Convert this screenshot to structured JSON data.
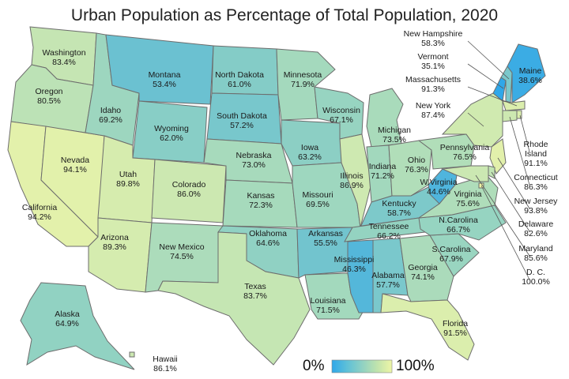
{
  "title": "Urban Population as Percentage of Total Population, 2020",
  "legend": {
    "min_label": "0%",
    "max_label": "100%",
    "colors": [
      "#2fa7e9",
      "#5ec0d8",
      "#8fd1c3",
      "#bfe3ad",
      "#eef5a6"
    ]
  },
  "color_scale": {
    "low": "#2fa7e9",
    "high": "#f3f7a6"
  },
  "states": [
    {
      "name": "Washington",
      "value": 83.4,
      "label": "83.4%"
    },
    {
      "name": "Oregon",
      "value": 80.5,
      "label": "80.5%"
    },
    {
      "name": "California",
      "value": 94.2,
      "label": "94.2%"
    },
    {
      "name": "Nevada",
      "value": 94.1,
      "label": "94.1%"
    },
    {
      "name": "Idaho",
      "value": 69.2,
      "label": "69.2%"
    },
    {
      "name": "Montana",
      "value": 53.4,
      "label": "53.4%"
    },
    {
      "name": "Wyoming",
      "value": 62.0,
      "label": "62.0%"
    },
    {
      "name": "Utah",
      "value": 89.8,
      "label": "89.8%"
    },
    {
      "name": "Colorado",
      "value": 86.0,
      "label": "86.0%"
    },
    {
      "name": "Arizona",
      "value": 89.3,
      "label": "89.3%"
    },
    {
      "name": "New Mexico",
      "value": 74.5,
      "label": "74.5%"
    },
    {
      "name": "North Dakota",
      "value": 61.0,
      "label": "61.0%"
    },
    {
      "name": "South Dakota",
      "value": 57.2,
      "label": "57.2%"
    },
    {
      "name": "Nebraska",
      "value": 73.0,
      "label": "73.0%"
    },
    {
      "name": "Kansas",
      "value": 72.3,
      "label": "72.3%"
    },
    {
      "name": "Oklahoma",
      "value": 64.6,
      "label": "64.6%"
    },
    {
      "name": "Texas",
      "value": 83.7,
      "label": "83.7%"
    },
    {
      "name": "Minnesota",
      "value": 71.9,
      "label": "71.9%"
    },
    {
      "name": "Iowa",
      "value": 63.2,
      "label": "63.2%"
    },
    {
      "name": "Missouri",
      "value": 69.5,
      "label": "69.5%"
    },
    {
      "name": "Arkansas",
      "value": 55.5,
      "label": "55.5%"
    },
    {
      "name": "Louisiana",
      "value": 71.5,
      "label": "71.5%"
    },
    {
      "name": "Wisconsin",
      "value": 67.1,
      "label": "67.1%"
    },
    {
      "name": "Illinois",
      "value": 86.9,
      "label": "86.9%"
    },
    {
      "name": "Michigan",
      "value": 73.5,
      "label": "73.5%"
    },
    {
      "name": "Indiana",
      "value": 71.2,
      "label": "71.2%"
    },
    {
      "name": "Ohio",
      "value": 76.3,
      "label": "76.3%"
    },
    {
      "name": "Kentucky",
      "value": 58.7,
      "label": "58.7%"
    },
    {
      "name": "Tennessee",
      "value": 66.2,
      "label": "66.2%"
    },
    {
      "name": "Mississippi",
      "value": 46.3,
      "label": "46.3%"
    },
    {
      "name": "Alabama",
      "value": 57.7,
      "label": "57.7%"
    },
    {
      "name": "Georgia",
      "value": 74.1,
      "label": "74.1%"
    },
    {
      "name": "Florida",
      "value": 91.5,
      "label": "91.5%"
    },
    {
      "name": "S.Carolina",
      "value": 67.9,
      "label": "67.9%"
    },
    {
      "name": "N.Carolina",
      "value": 66.7,
      "label": "66.7%"
    },
    {
      "name": "Virginia",
      "value": 75.6,
      "label": "75.6%"
    },
    {
      "name": "W.Virginia",
      "value": 44.6,
      "label": "44.6%"
    },
    {
      "name": "Pennsylvania",
      "value": 76.5,
      "label": "76.5%"
    },
    {
      "name": "New York",
      "value": 87.4,
      "label": "87.4%"
    },
    {
      "name": "Vermont",
      "value": 35.1,
      "label": "35.1%"
    },
    {
      "name": "New Hampshire",
      "value": 58.3,
      "label": "58.3%"
    },
    {
      "name": "Maine",
      "value": 38.6,
      "label": "38.6%"
    },
    {
      "name": "Massachusetts",
      "value": 91.3,
      "label": "91.3%"
    },
    {
      "name": "Rhode Island",
      "value": 91.1,
      "label": "91.1%"
    },
    {
      "name": "Connecticut",
      "value": 86.3,
      "label": "86.3%"
    },
    {
      "name": "New Jersey",
      "value": 93.8,
      "label": "93.8%"
    },
    {
      "name": "Delaware",
      "value": 82.6,
      "label": "82.6%"
    },
    {
      "name": "Maryland",
      "value": 85.6,
      "label": "85.6%"
    },
    {
      "name": "D. C.",
      "value": 100.0,
      "label": "100.0%"
    },
    {
      "name": "Alaska",
      "value": 64.9,
      "label": "64.9%"
    },
    {
      "name": "Hawaii",
      "value": 86.1,
      "label": "86.1%"
    }
  ]
}
